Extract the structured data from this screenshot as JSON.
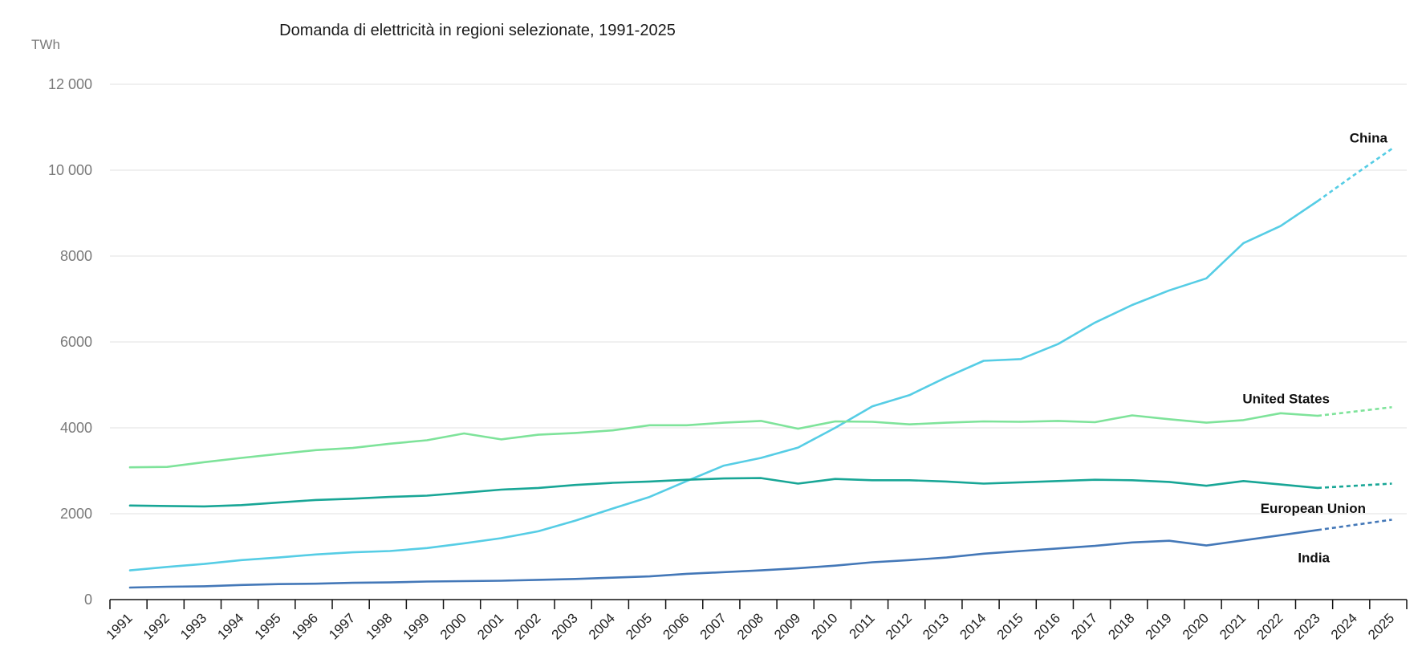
{
  "chart_data": {
    "type": "line",
    "title": "Domanda di elettricità in regioni selezionate, 1991-2025",
    "unit": "TWh",
    "ylim": [
      0,
      12000
    ],
    "yticks": [
      0,
      2000,
      4000,
      6000,
      8000,
      10000,
      12000
    ],
    "ytick_labels": [
      "0",
      "2000",
      "4000",
      "6000",
      "8000",
      "10 000",
      "12 000"
    ],
    "grid": true,
    "legend": "inline labels",
    "x": [
      "1991",
      "1992",
      "1993",
      "1994",
      "1995",
      "1996",
      "1997",
      "1998",
      "1999",
      "2000",
      "2001",
      "2002",
      "2003",
      "2004",
      "2005",
      "2006",
      "2007",
      "2008",
      "2009",
      "2010",
      "2011",
      "2012",
      "2013",
      "2014",
      "2015",
      "2016",
      "2017",
      "2018",
      "2019",
      "2020",
      "2021",
      "2022",
      "2023",
      "2024",
      "2025"
    ],
    "projection_from": "2023",
    "series": [
      {
        "name": "China",
        "color": "#56CDE5",
        "values": [
          680,
          760,
          830,
          920,
          980,
          1050,
          1100,
          1130,
          1200,
          1310,
          1430,
          1590,
          1840,
          2120,
          2390,
          2760,
          3120,
          3300,
          3540,
          4000,
          4500,
          4760,
          5180,
          5560,
          5600,
          5950,
          6450,
          6860,
          7200,
          7480,
          8300,
          8700,
          9280,
          9900,
          10500
        ]
      },
      {
        "name": "United States",
        "color": "#7EE39A",
        "values": [
          3080,
          3090,
          3200,
          3300,
          3390,
          3480,
          3530,
          3630,
          3710,
          3870,
          3730,
          3840,
          3880,
          3940,
          4060,
          4060,
          4120,
          4160,
          3980,
          4150,
          4140,
          4080,
          4120,
          4150,
          4140,
          4160,
          4130,
          4290,
          4200,
          4120,
          4180,
          4340,
          4280,
          4380,
          4480
        ]
      },
      {
        "name": "European Union",
        "color": "#18A696",
        "values": [
          2190,
          2180,
          2170,
          2200,
          2260,
          2320,
          2350,
          2390,
          2420,
          2490,
          2560,
          2600,
          2670,
          2720,
          2750,
          2790,
          2820,
          2830,
          2700,
          2810,
          2780,
          2780,
          2750,
          2700,
          2730,
          2760,
          2790,
          2780,
          2740,
          2650,
          2760,
          2680,
          2600,
          2650,
          2700
        ]
      },
      {
        "name": "India",
        "color": "#4478B8",
        "values": [
          280,
          300,
          310,
          340,
          360,
          370,
          390,
          400,
          420,
          430,
          440,
          460,
          480,
          510,
          540,
          600,
          640,
          680,
          730,
          790,
          870,
          920,
          980,
          1070,
          1130,
          1190,
          1250,
          1330,
          1370,
          1260,
          1380,
          1500,
          1620,
          1740,
          1860
        ]
      }
    ]
  }
}
